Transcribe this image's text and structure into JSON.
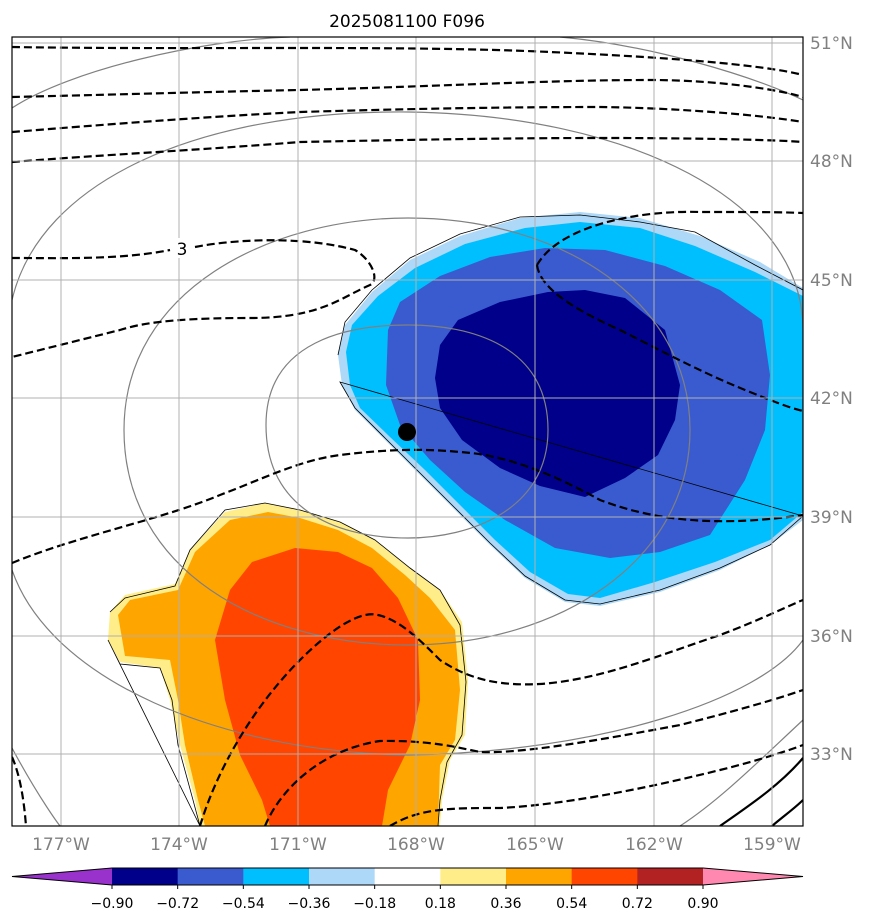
{
  "chart_data": {
    "type": "contour-map",
    "title": "2025081100 F096",
    "lat_ticks": [
      "51°N",
      "48°N",
      "45°N",
      "42°N",
      "39°N",
      "36°N",
      "33°N"
    ],
    "lon_ticks": [
      "177°W",
      "174°W",
      "171°W",
      "168°W",
      "165°W",
      "162°W",
      "159°W"
    ],
    "lon_range": [
      -178.2,
      -158.3
    ],
    "lat_range": [
      31.3,
      51.2
    ],
    "colorbar": {
      "tick_labels": [
        "−0.90",
        "−0.72",
        "−0.54",
        "−0.36",
        "−0.18",
        "0.18",
        "0.36",
        "0.54",
        "0.72",
        "0.90"
      ],
      "levels": [
        -0.9,
        -0.72,
        -0.54,
        -0.36,
        -0.18,
        0.18,
        0.36,
        0.54,
        0.72,
        0.9
      ],
      "colors": [
        "#9932cc",
        "#00008b",
        "#3a5bcf",
        "#00bfff",
        "#add8f7",
        "#ffffff",
        "#ffed8a",
        "#ffa500",
        "#ff4500",
        "#b22222",
        "#ff88b0"
      ],
      "extend": "both"
    },
    "contour_label": "3",
    "marker": {
      "lon": -168.2,
      "lat": 41.1,
      "color": "#000000"
    },
    "grid": true
  }
}
